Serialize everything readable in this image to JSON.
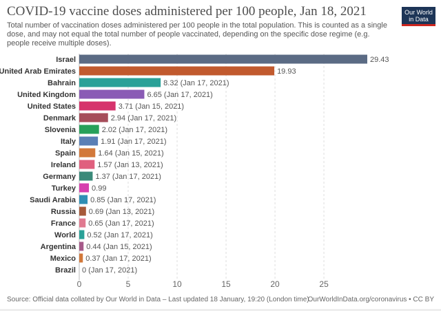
{
  "header": {
    "title": "COVID-19 vaccine doses administered per 100 people, Jan 18, 2021",
    "subtitle": "Total number of vaccination doses administered per 100 people in the total population. This is counted as a single dose, and may not equal the total number of people vaccinated, depending on the specific dose regime (e.g. people receive multiple doses).",
    "logo_line1": "Our World",
    "logo_line2": "in Data"
  },
  "footer": {
    "source": "Source: Official data collated by Our World in Data – Last updated 18 January, 19:20 (London time)",
    "credit": "OurWorldInData.org/coronavirus • CC BY"
  },
  "chart_data": {
    "type": "bar",
    "orientation": "horizontal",
    "xlim": [
      0,
      29.43
    ],
    "ticks": [
      0,
      5,
      10,
      15,
      20,
      25
    ],
    "grid": true,
    "categories": [
      "Israel",
      "United Arab Emirates",
      "Bahrain",
      "United Kingdom",
      "United States",
      "Denmark",
      "Slovenia",
      "Italy",
      "Spain",
      "Ireland",
      "Germany",
      "Turkey",
      "Saudi Arabia",
      "Russia",
      "France",
      "World",
      "Argentina",
      "Mexico",
      "Brazil"
    ],
    "values": [
      29.43,
      19.93,
      8.32,
      6.65,
      3.71,
      2.94,
      2.02,
      1.91,
      1.64,
      1.57,
      1.37,
      0.99,
      0.85,
      0.69,
      0.65,
      0.52,
      0.44,
      0.37,
      0
    ],
    "labels": [
      "29.43",
      "19.93",
      "8.32 (Jan 17, 2021)",
      "6.65 (Jan 17, 2021)",
      "3.71 (Jan 15, 2021)",
      "2.94 (Jan 17, 2021)",
      "2.02 (Jan 17, 2021)",
      "1.91 (Jan 17, 2021)",
      "1.64 (Jan 15, 2021)",
      "1.57 (Jan 13, 2021)",
      "1.37 (Jan 17, 2021)",
      "0.99",
      "0.85 (Jan 17, 2021)",
      "0.69 (Jan 13, 2021)",
      "0.65 (Jan 17, 2021)",
      "0.52 (Jan 17, 2021)",
      "0.44 (Jan 15, 2021)",
      "0.37 (Jan 17, 2021)",
      "0 (Jan 17, 2021)"
    ],
    "colors": [
      "#5b6b84",
      "#c15a2e",
      "#2aa198",
      "#8a5bb5",
      "#d6336c",
      "#a64d5a",
      "#27a05a",
      "#5a7fb5",
      "#d2783a",
      "#e0607e",
      "#3a8a7a",
      "#d63fae",
      "#2f8fb5",
      "#a65a3a",
      "#e07a90",
      "#2aa198",
      "#a65a8a",
      "#d2783a",
      "#5b6b84"
    ]
  }
}
